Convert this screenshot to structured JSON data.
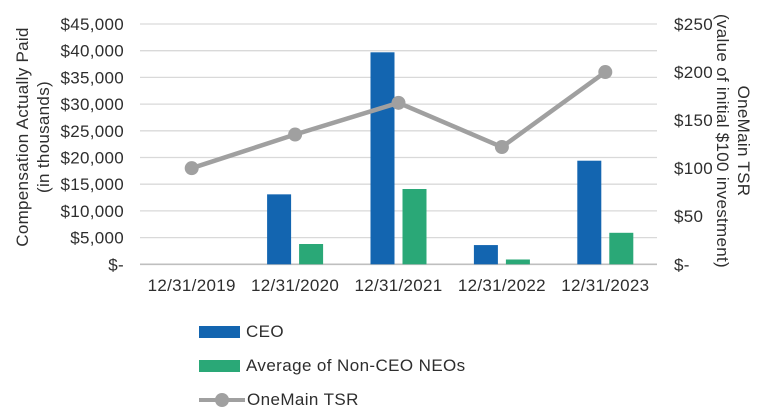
{
  "chart_data": {
    "type": "combo-bar-line",
    "categories": [
      "12/31/2019",
      "12/31/2020",
      "12/31/2021",
      "12/31/2022",
      "12/31/2023"
    ],
    "series": [
      {
        "name": "CEO",
        "type": "bar",
        "axis": "left",
        "color": "#1365b0",
        "values": [
          null,
          13100,
          39700,
          3600,
          19400
        ]
      },
      {
        "name": "Average of Non-CEO NEOs",
        "type": "bar",
        "axis": "left",
        "color": "#2aa877",
        "values": [
          null,
          3800,
          14100,
          900,
          5900
        ]
      },
      {
        "name": "OneMain TSR",
        "type": "line",
        "axis": "right",
        "color": "#a0a0a0",
        "values": [
          100,
          135,
          168,
          122,
          200
        ]
      }
    ],
    "left_axis": {
      "title_line1": "Compensation Actually Paid",
      "title_line2": "(in thousands)",
      "tick_labels": [
        "$45,000",
        "$40,000",
        "$35,000",
        "$30,000",
        "$25,000",
        "$20,000",
        "$15,000",
        "$10,000",
        "$5,000",
        "$-"
      ],
      "max": 45000,
      "min": 0,
      "step": 5000
    },
    "right_axis": {
      "title_line1": "OneMain TSR",
      "title_line2": "(value of initial $100 investment)",
      "tick_labels": [
        "$250",
        "$200",
        "$150",
        "$100",
        "$50",
        "$-"
      ],
      "max": 250,
      "min": 0,
      "step": 50
    },
    "grid": true,
    "legend_position": "bottom-left",
    "colors": {
      "gridline": "#d9d9d9",
      "baseline": "#bfbfbf",
      "text": "#2e2e2e"
    }
  }
}
